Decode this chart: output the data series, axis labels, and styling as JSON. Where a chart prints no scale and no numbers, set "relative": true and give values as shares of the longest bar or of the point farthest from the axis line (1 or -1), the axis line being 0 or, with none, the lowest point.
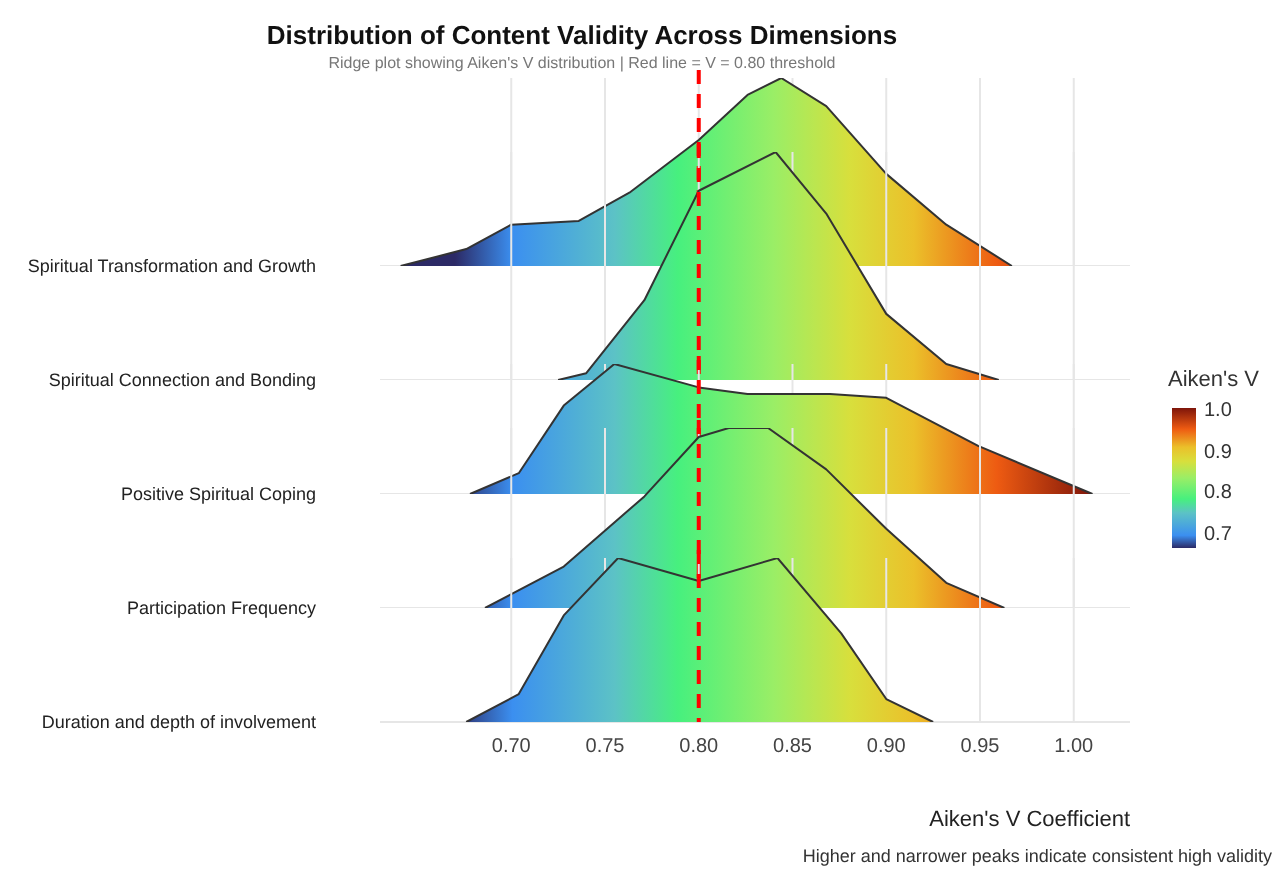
{
  "chart_data": [
    {
      "type": "area",
      "title": "Distribution of Content Validity Across Dimensions",
      "subtitle": "Ridge plot showing Aiken's V distribution | Red line = V = 0.80 threshold",
      "relative": true,
      "tick_labels": false,
      "grid": true,
      "legend": false,
      "series": [
        {
          "name": "Spiritual Transformation and Growth",
          "x": [
            0.641,
            0.676,
            0.7,
            0.736,
            0.763,
            0.8,
            0.826,
            0.844,
            0.868,
            0.9,
            0.932,
            0.967
          ],
          "values": [
            0,
            0.09,
            0.22,
            0.24,
            0.39,
            0.67,
            0.91,
            1,
            0.85,
            0.49,
            0.22,
            0
          ]
        }
      ],
      "xlim": [
        0.63,
        1.03
      ],
      "xticks": [
        {
          "value": 0.7,
          "label": null
        },
        {
          "value": 0.75,
          "label": null
        },
        {
          "value": 0.8,
          "label": null
        },
        {
          "value": 0.85,
          "label": null
        },
        {
          "value": 0.9,
          "label": null
        },
        {
          "value": 0.95,
          "label": null
        },
        {
          "value": 1,
          "label": null
        }
      ],
      "ref_lines": [
        {
          "axis": "x",
          "value": 0.8,
          "color": "#ff0000",
          "line_style": "dashed"
        }
      ]
    },
    {
      "type": "area",
      "relative": true,
      "tick_labels": false,
      "grid": true,
      "legend": false,
      "series": [
        {
          "name": "Spiritual Connection and Bonding",
          "x": [
            0.725,
            0.74,
            0.771,
            0.8,
            0.841,
            0.868,
            0.9,
            0.932,
            0.96
          ],
          "values": [
            0,
            0.03,
            0.35,
            0.83,
            1,
            0.73,
            0.29,
            0.07,
            0
          ]
        }
      ],
      "xlim": [
        0.63,
        1.03
      ],
      "xticks": [
        {
          "value": 0.7,
          "label": null
        },
        {
          "value": 0.75,
          "label": null
        },
        {
          "value": 0.8,
          "label": null
        },
        {
          "value": 0.85,
          "label": null
        },
        {
          "value": 0.9,
          "label": null
        },
        {
          "value": 0.95,
          "label": null
        },
        {
          "value": 1,
          "label": null
        }
      ],
      "ref_lines": [
        {
          "axis": "x",
          "value": 0.8,
          "color": "#ff0000",
          "line_style": "dashed"
        }
      ]
    },
    {
      "type": "area",
      "relative": true,
      "tick_labels": false,
      "grid": true,
      "legend": false,
      "clabel": "Aiken's V",
      "clim": [
        0.67,
        1.01
      ],
      "cticks": [
        {
          "value": 0.7,
          "label": "0.7"
        },
        {
          "value": 0.8,
          "label": "0.8"
        },
        {
          "value": 0.9,
          "label": "0.9"
        },
        {
          "value": 1,
          "label": "1.0"
        }
      ],
      "series": [
        {
          "name": "Positive Spiritual Coping",
          "x": [
            0.678,
            0.704,
            0.728,
            0.755,
            0.8,
            0.826,
            0.87,
            0.9,
            0.949,
            1.01
          ],
          "values": [
            0,
            0.16,
            0.68,
            1,
            0.82,
            0.77,
            0.77,
            0.74,
            0.37,
            0
          ]
        }
      ],
      "xlim": [
        0.63,
        1.03
      ],
      "xticks": [
        {
          "value": 0.7,
          "label": null
        },
        {
          "value": 0.75,
          "label": null
        },
        {
          "value": 0.8,
          "label": null
        },
        {
          "value": 0.85,
          "label": null
        },
        {
          "value": 0.9,
          "label": null
        },
        {
          "value": 0.95,
          "label": null
        },
        {
          "value": 1,
          "label": null
        }
      ],
      "ref_lines": [
        {
          "axis": "x",
          "value": 0.8,
          "color": "#ff0000",
          "line_style": "dashed"
        }
      ]
    },
    {
      "type": "area",
      "relative": true,
      "tick_labels": false,
      "grid": true,
      "legend": false,
      "series": [
        {
          "name": "Participation Frequency",
          "x": [
            0.686,
            0.728,
            0.771,
            0.8,
            0.816,
            0.837,
            0.868,
            0.9,
            0.932,
            0.963
          ],
          "values": [
            0,
            0.23,
            0.62,
            0.95,
            1,
            1,
            0.77,
            0.44,
            0.14,
            0
          ]
        }
      ],
      "xlim": [
        0.63,
        1.03
      ],
      "xticks": [
        {
          "value": 0.7,
          "label": null
        },
        {
          "value": 0.75,
          "label": null
        },
        {
          "value": 0.8,
          "label": null
        },
        {
          "value": 0.85,
          "label": null
        },
        {
          "value": 0.9,
          "label": null
        },
        {
          "value": 0.95,
          "label": null
        },
        {
          "value": 1,
          "label": null
        }
      ],
      "ref_lines": [
        {
          "axis": "x",
          "value": 0.8,
          "color": "#ff0000",
          "line_style": "dashed"
        }
      ]
    },
    {
      "type": "area",
      "relative": true,
      "tick_labels": "x",
      "grid": true,
      "legend": false,
      "xlabel": "Aiken's V Coefficient",
      "annotations": [
        "Higher and narrower peaks indicate consistent high validity"
      ],
      "series": [
        {
          "name": "Duration and depth of involvement",
          "x": [
            0.676,
            0.704,
            0.728,
            0.757,
            0.8,
            0.842,
            0.876,
            0.9,
            0.925
          ],
          "values": [
            0,
            0.17,
            0.65,
            1,
            0.86,
            1,
            0.54,
            0.14,
            0
          ]
        }
      ],
      "xlim": [
        0.63,
        1.03
      ],
      "xticks": [
        {
          "value": 0.7,
          "label": "0.70"
        },
        {
          "value": 0.75,
          "label": "0.75"
        },
        {
          "value": 0.8,
          "label": "0.80"
        },
        {
          "value": 0.85,
          "label": "0.85"
        },
        {
          "value": 0.9,
          "label": "0.90"
        },
        {
          "value": 0.95,
          "label": "0.95"
        },
        {
          "value": 1,
          "label": "1.00"
        }
      ],
      "ref_lines": [
        {
          "axis": "x",
          "value": 0.8,
          "color": "#ff0000",
          "line_style": "dashed"
        }
      ]
    }
  ]
}
